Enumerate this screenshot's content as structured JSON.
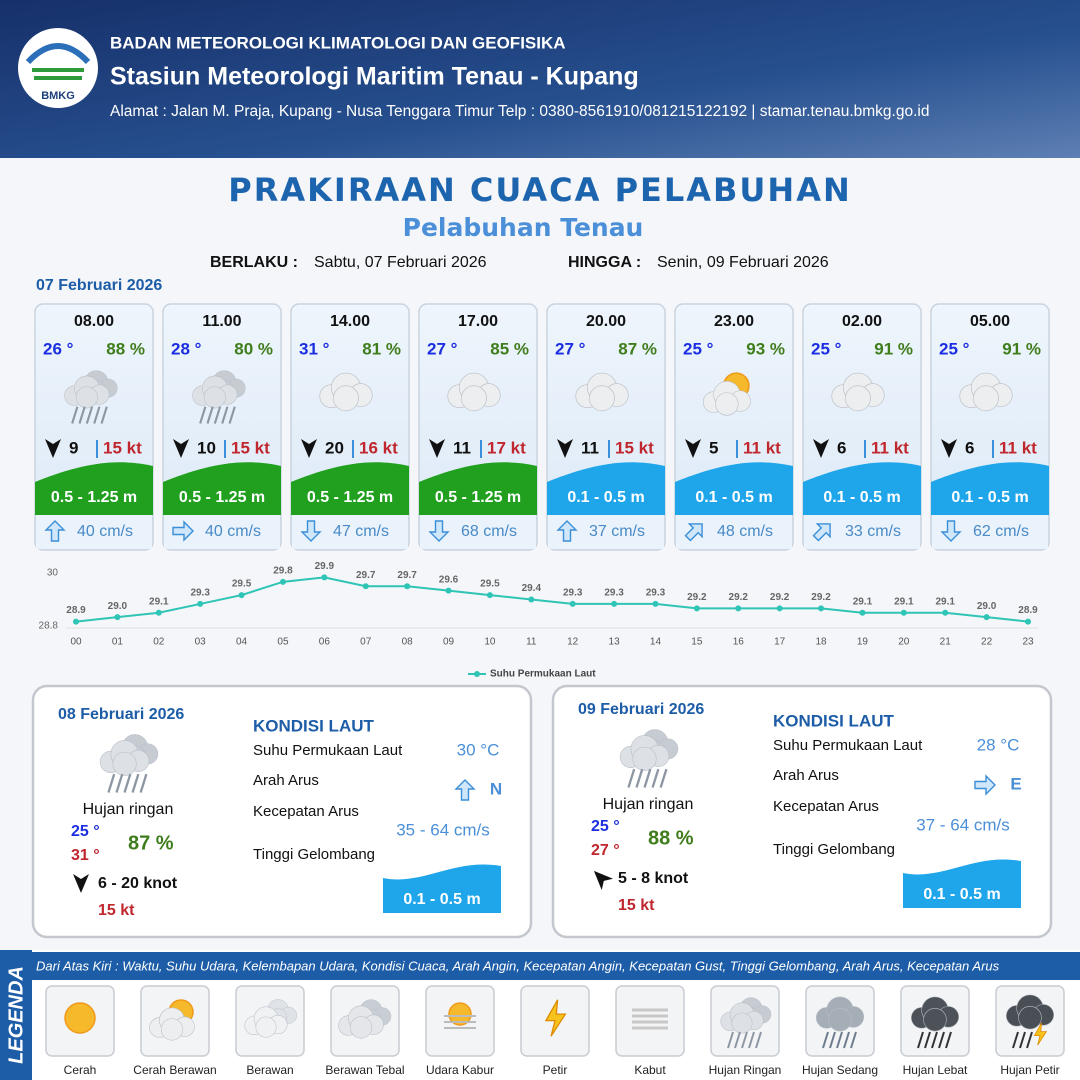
{
  "header": {
    "logo": "BMKG",
    "org": "BADAN METEOROLOGI KLIMATOLOGI DAN GEOFISIKA",
    "station": "Stasiun Meteorologi Maritim Tenau - Kupang",
    "address": "Alamat : Jalan M. Praja, Kupang - Nusa Tenggara Timur Telp : 0380-8561910/081215122192  | stamar.tenau.bmkg.go.id"
  },
  "title": "PRAKIRAAN CUACA PELABUHAN",
  "subtitle": "Pelabuhan Tenau",
  "validity": {
    "from_label": "BERLAKU :",
    "from": "Sabtu, 07 Februari 2026",
    "to_label": "HINGGA :",
    "to": "Senin, 09 Februari 2026"
  },
  "today": {
    "date": "07 Februari 2026",
    "slots": [
      {
        "time": "08.00",
        "temp": "26 °",
        "humidity": "88 %",
        "wind": "9",
        "gust": "15 kt",
        "wave": "0.5 - 1.25 m",
        "current": "40 cm/s"
      },
      {
        "time": "11.00",
        "temp": "28 °",
        "humidity": "80 %",
        "wind": "10",
        "gust": "15 kt",
        "wave": "0.5 - 1.25 m",
        "current": "40 cm/s"
      },
      {
        "time": "14.00",
        "temp": "31 °",
        "humidity": "81 %",
        "wind": "20",
        "gust": "16 kt",
        "wave": "0.5 - 1.25 m",
        "current": "47 cm/s"
      },
      {
        "time": "17.00",
        "temp": "27 °",
        "humidity": "85 %",
        "wind": "11",
        "gust": "17 kt",
        "wave": "0.5 - 1.25 m",
        "current": "68 cm/s"
      },
      {
        "time": "20.00",
        "temp": "27 °",
        "humidity": "87 %",
        "wind": "11",
        "gust": "15 kt",
        "wave": "0.1 - 0.5 m",
        "current": "37 cm/s"
      },
      {
        "time": "23.00",
        "temp": "25 °",
        "humidity": "93 %",
        "wind": "5",
        "gust": "11 kt",
        "wave": "0.1 - 0.5 m",
        "current": "48 cm/s"
      },
      {
        "time": "02.00",
        "temp": "25 °",
        "humidity": "91 %",
        "wind": "6",
        "gust": "11 kt",
        "wave": "0.1 - 0.5 m",
        "current": "33 cm/s"
      },
      {
        "time": "05.00",
        "temp": "25 °",
        "humidity": "91 %",
        "wind": "6",
        "gust": "11 kt",
        "wave": "0.1 - 0.5 m",
        "current": "62 cm/s"
      }
    ]
  },
  "chart_data": {
    "type": "line",
    "categories": [
      "00",
      "01",
      "02",
      "03",
      "04",
      "05",
      "06",
      "07",
      "08",
      "09",
      "10",
      "11",
      "12",
      "13",
      "14",
      "15",
      "16",
      "17",
      "18",
      "19",
      "20",
      "21",
      "22",
      "23"
    ],
    "series": [
      {
        "name": "Suhu Permukaan Laut",
        "color": "#2ec4b6",
        "values": [
          28.9,
          29.0,
          29.1,
          29.3,
          29.5,
          29.8,
          29.9,
          29.7,
          29.7,
          29.6,
          29.5,
          29.4,
          29.3,
          29.3,
          29.3,
          29.2,
          29.2,
          29.2,
          29.2,
          29.1,
          29.1,
          29.1,
          29.0,
          28.9
        ],
        "value_labels": [
          "28.9",
          "29.0",
          "29.1",
          "29.3",
          "29.5",
          "29.8",
          "29.9",
          "29.7",
          "29.7",
          "29.6",
          "29.5",
          "29.4",
          "29.3",
          "29.3",
          "29.3",
          "29.2",
          "29.2",
          "29.2",
          "29.2",
          "29.1",
          "29.1",
          "29.1",
          "29.0",
          "28.9"
        ]
      }
    ],
    "ylim": [
      28.8,
      30
    ],
    "yticks": [
      28.8,
      30
    ]
  },
  "days": [
    {
      "date": "08 Februari 2026",
      "condition": "Hujan ringan",
      "tmin": "25 °",
      "tmax": "31 °",
      "humidity": "87 %",
      "wind": "6  - 20 knot",
      "gust": "15 kt",
      "section": "KONDISI LAUT",
      "sst_label": "Suhu Permukaan Laut",
      "sst": "30 °C",
      "dir_label": "Arah Arus",
      "dir": "N",
      "speed_label": "Kecepatan Arus",
      "speed": "35 - 64 cm/s",
      "wave_label": "Tinggi Gelombang",
      "wave": "0.1 - 0.5 m"
    },
    {
      "date": "09 Februari 2026",
      "condition": "Hujan ringan",
      "tmin": "25 °",
      "tmax": "27 °",
      "humidity": "88 %",
      "wind": "5  - 8 knot",
      "gust": "15 kt",
      "section": "KONDISI LAUT",
      "sst_label": "Suhu Permukaan Laut",
      "sst": "28 °C",
      "dir_label": "Arah Arus",
      "dir": "E",
      "speed_label": "Kecepatan Arus",
      "speed": "37 - 64 cm/s",
      "wave_label": "Tinggi Gelombang",
      "wave": "0.1 - 0.5 m"
    }
  ],
  "legend": {
    "title": "LEGENDA",
    "note": "Dari Atas Kiri : Waktu, Suhu Udara, Kelembapan Udara, Kondisi Cuaca, Arah Angin, Kecepatan Angin, Kecepatan Gust, Tinggi Gelombang, Arah Arus, Kecepatan Arus",
    "items": [
      "Cerah",
      "Cerah Berawan",
      "Berawan",
      "Berawan Tebal",
      "Udara Kabur",
      "Petir",
      "Kabut",
      "Hujan Ringan",
      "Hujan Sedang",
      "Hujan Lebat",
      "Hujan Petir"
    ]
  }
}
